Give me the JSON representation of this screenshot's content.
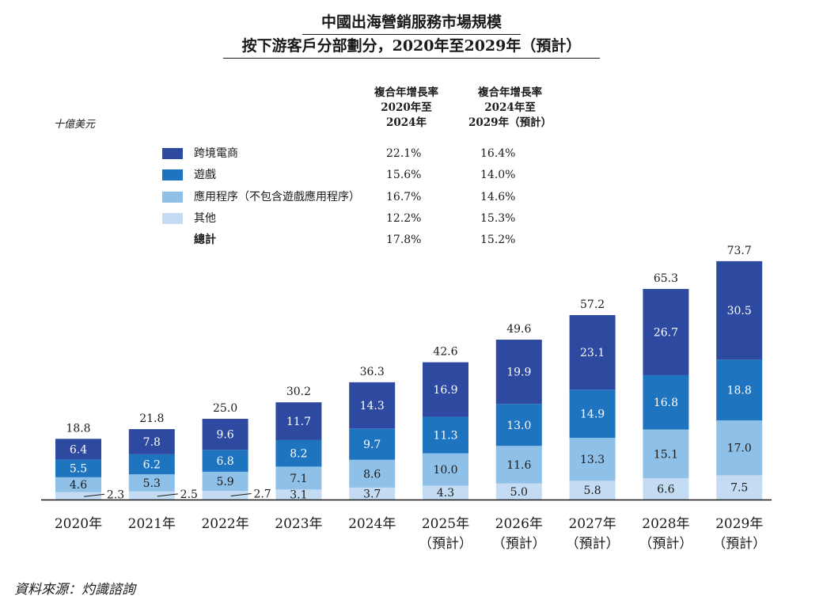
{
  "title_line1": "中國出海營銷服務市場規模",
  "title_line2": "按下游客戶分部劃分，2020年至2029年（預計）",
  "unit_label": "十億美元",
  "cagr_headers": [
    {
      "lines": [
        "複合年增長率",
        "2020年至",
        "2024年"
      ]
    },
    {
      "lines": [
        "複合年增長率",
        "2024年至",
        "2029年（預計）"
      ]
    }
  ],
  "legend": [
    {
      "label": "跨境電商",
      "color": "#2e4aa0",
      "cagr_2020_2024": "22.1%",
      "cagr_2024_2029": "16.4%"
    },
    {
      "label": "遊戲",
      "color": "#1f74bf",
      "cagr_2020_2024": "15.6%",
      "cagr_2024_2029": "14.0%"
    },
    {
      "label": "應用程序（不包含遊戲應用程序）",
      "color": "#8fc0e8",
      "cagr_2020_2024": "16.7%",
      "cagr_2024_2029": "14.6%"
    },
    {
      "label": "其他",
      "color": "#c4dcf3",
      "cagr_2020_2024": "12.2%",
      "cagr_2024_2029": "15.3%"
    },
    {
      "label": "總計",
      "color": "",
      "cagr_2020_2024": "17.8%",
      "cagr_2024_2029": "15.2%"
    }
  ],
  "source": "資料來源：灼識諮詢",
  "chart_data": {
    "type": "bar",
    "stacked": true,
    "categories": [
      [
        "2020年"
      ],
      [
        "2021年"
      ],
      [
        "2022年"
      ],
      [
        "2023年"
      ],
      [
        "2024年"
      ],
      [
        "2025年",
        "（預計）"
      ],
      [
        "2026年",
        "（預計）"
      ],
      [
        "2027年",
        "（預計）"
      ],
      [
        "2028年",
        "（預計）"
      ],
      [
        "2029年",
        "（預計）"
      ]
    ],
    "series": [
      {
        "name": "其他",
        "color": "#c4dcf3",
        "values": [
          2.3,
          2.5,
          2.7,
          3.1,
          3.7,
          4.3,
          5.0,
          5.8,
          6.6,
          7.5
        ]
      },
      {
        "name": "應用程序（不包含遊戲應用程序）",
        "color": "#8fc0e8",
        "values": [
          4.6,
          5.3,
          5.9,
          7.1,
          8.6,
          10.0,
          11.6,
          13.3,
          15.1,
          17.0
        ]
      },
      {
        "name": "遊戲",
        "color": "#1f74bf",
        "values": [
          5.5,
          6.2,
          6.8,
          8.2,
          9.7,
          11.3,
          13.0,
          14.9,
          16.8,
          18.8
        ]
      },
      {
        "name": "跨境電商",
        "color": "#2e4aa0",
        "values": [
          6.4,
          7.8,
          9.6,
          11.7,
          14.3,
          16.9,
          19.9,
          23.1,
          26.7,
          30.5
        ]
      }
    ],
    "segment_labels": [
      [
        "2.3",
        "2.5",
        "2.7",
        "3.1",
        "3.7",
        "4.3",
        "5.0",
        "5.8",
        "6.6",
        "7.5"
      ],
      [
        "4.6",
        "5.3",
        "5.9",
        "7.1",
        "8.6",
        "10.0",
        "11.6",
        "13.3",
        "15.1",
        "17.0"
      ],
      [
        "5.5",
        "6.2",
        "6.8",
        "8.2",
        "9.7",
        "11.3",
        "13.0",
        "14.9",
        "16.8",
        "18.8"
      ],
      [
        "6.4",
        "7.8",
        "9.6",
        "11.7",
        "14.3",
        "16.9",
        "19.9",
        "23.1",
        "26.7",
        "30.5"
      ]
    ],
    "totals": [
      "18.8",
      "21.8",
      "25.0",
      "30.2",
      "36.3",
      "42.6",
      "49.6",
      "57.2",
      "65.3",
      "73.7"
    ],
    "ylim": [
      0,
      73.7
    ],
    "grid": false,
    "legend_position": "top-left"
  }
}
